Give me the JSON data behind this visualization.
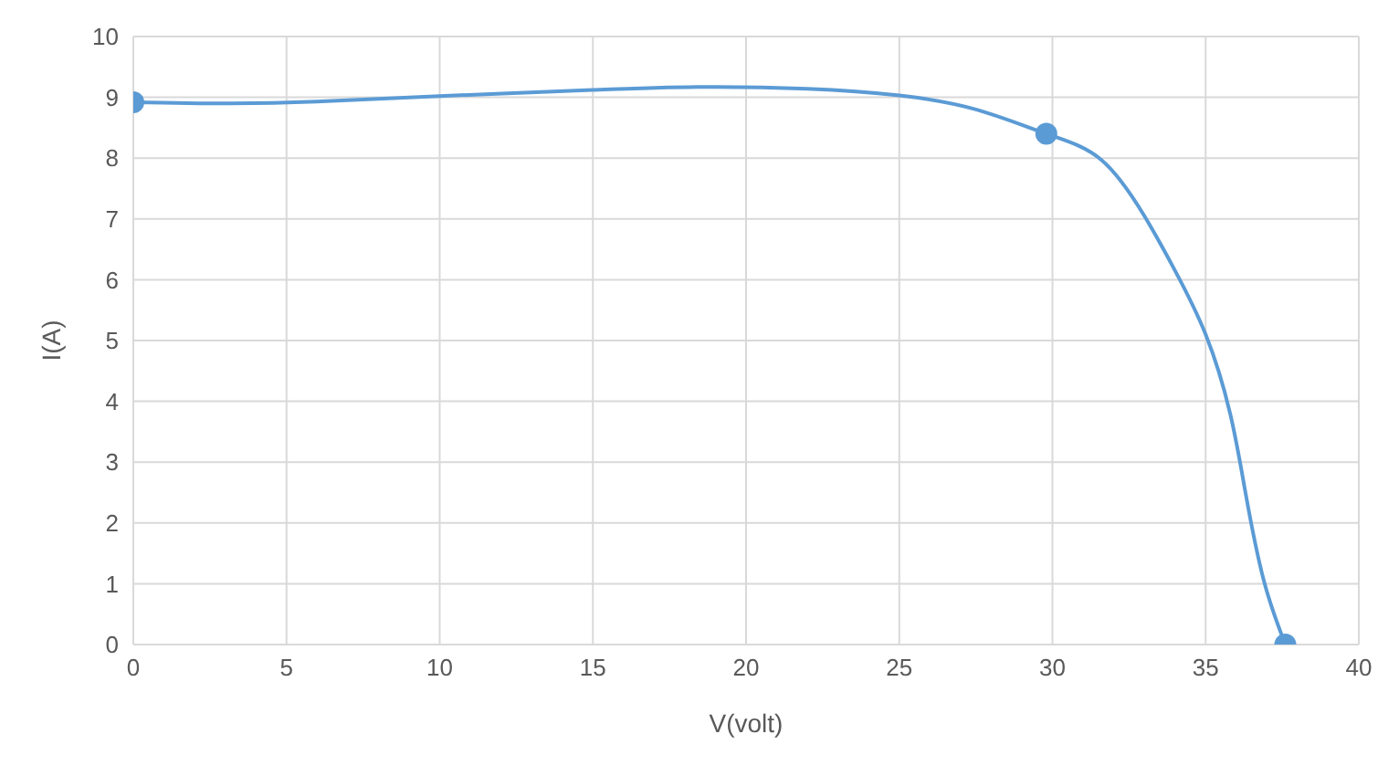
{
  "chart_data": {
    "type": "line",
    "xlabel": "V(volt)",
    "ylabel": "I(A)",
    "xlim": [
      0,
      40
    ],
    "xticks": [
      0,
      5,
      10,
      15,
      20,
      25,
      30,
      35,
      40
    ],
    "ylim": [
      0,
      10
    ],
    "yticks": [
      0,
      1,
      2,
      3,
      4,
      5,
      6,
      7,
      8,
      9,
      10
    ],
    "grid": true,
    "line_style": "solid",
    "series": [
      {
        "marker": "none",
        "color": "#5b9bd5",
        "x": [
          0,
          3,
          6,
          10,
          15,
          18.5,
          22,
          25,
          27.5,
          29.8,
          31.6,
          33,
          34,
          35,
          35.8,
          36.3,
          36.9,
          37.6
        ],
        "values": [
          8.92,
          8.9,
          8.93,
          9.02,
          9.12,
          9.17,
          9.14,
          9.03,
          8.8,
          8.4,
          7.97,
          7.05,
          6.15,
          5.1,
          3.8,
          2.5,
          1.05,
          0
        ]
      },
      {
        "type": "scatter",
        "marker": "circle",
        "color": "#5b9bd5",
        "x": [
          0,
          29.8,
          37.6
        ],
        "values": [
          8.92,
          8.4,
          0
        ]
      }
    ]
  }
}
